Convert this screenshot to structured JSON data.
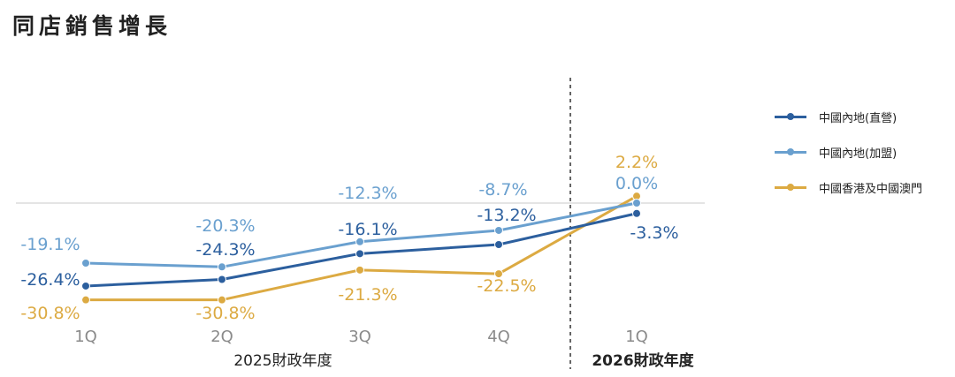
{
  "title": "同店銷售增長",
  "chart_data": {
    "type": "line",
    "categories": [
      "1Q",
      "2Q",
      "3Q",
      "4Q",
      "1Q"
    ],
    "groups": [
      {
        "label": "2025財政年度",
        "categories": [
          "1Q",
          "2Q",
          "3Q",
          "4Q"
        ]
      },
      {
        "label": "2026財政年度",
        "categories": [
          "1Q"
        ]
      }
    ],
    "series": [
      {
        "name": "中國內地(直營)",
        "color": "#2c5f9e",
        "values": [
          -26.4,
          -24.3,
          -16.1,
          -13.2,
          -3.3
        ],
        "labels": [
          "-26.4%",
          "-24.3%",
          "-16.1%",
          "-13.2%",
          "-3.3%"
        ]
      },
      {
        "name": "中國內地(加盟)",
        "color": "#6aa0cf",
        "values": [
          -19.1,
          -20.3,
          -12.3,
          -8.7,
          0.0
        ],
        "labels": [
          "-19.1%",
          "-20.3%",
          "-12.3%",
          "-8.7%",
          "0.0%"
        ]
      },
      {
        "name": "中國香港及中國澳門",
        "color": "#dcaa42",
        "values": [
          -30.8,
          -30.8,
          -21.3,
          -22.5,
          2.2
        ],
        "labels": [
          "-30.8%",
          "-30.8%",
          "-21.3%",
          "-22.5%",
          "2.2%"
        ]
      }
    ],
    "ylim": [
      -35,
      5
    ],
    "zero_line": true,
    "divider_after_category": 4,
    "legend_position": "right"
  }
}
